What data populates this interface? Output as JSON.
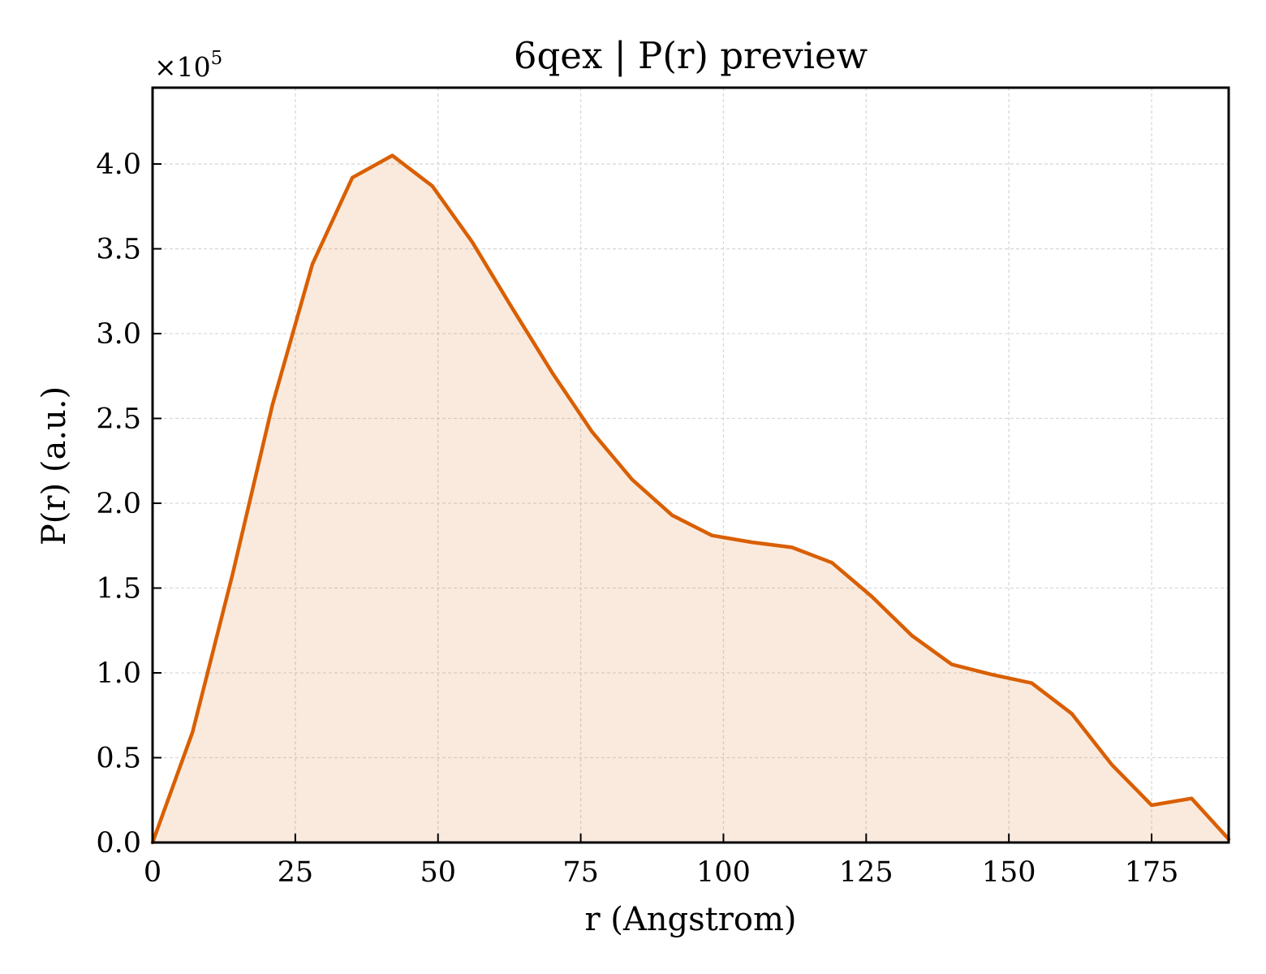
{
  "chart_data": {
    "type": "area",
    "title": "6qex | P(r) preview",
    "xlabel": "r (Angstrom)",
    "ylabel": "P(r) (a.u.)",
    "y_multiplier_prefix": "×10",
    "y_multiplier_exponent": "5",
    "xlim": [
      0,
      188.5
    ],
    "ylim": [
      0,
      4.45
    ],
    "x_ticks": [
      0,
      25,
      50,
      75,
      100,
      125,
      150,
      175
    ],
    "x_tick_labels": [
      "0",
      "25",
      "50",
      "75",
      "100",
      "125",
      "150",
      "175"
    ],
    "y_ticks": [
      0,
      0.5,
      1.0,
      1.5,
      2.0,
      2.5,
      3.0,
      3.5,
      4.0
    ],
    "y_tick_labels": [
      "0.0",
      "0.5",
      "1.0",
      "1.5",
      "2.0",
      "2.5",
      "3.0",
      "3.5",
      "4.0"
    ],
    "grid": true,
    "line_color": "#d95f02",
    "fill_color": "#d95f02",
    "series": [
      {
        "x": [
          0,
          7,
          14,
          21,
          28,
          35,
          42,
          49,
          56,
          63,
          70,
          77,
          84,
          91,
          98,
          105,
          112,
          119,
          126,
          133,
          140,
          147,
          154,
          161,
          168,
          175,
          182,
          188.5
        ],
        "values": [
          0,
          0.65,
          1.58,
          2.58,
          3.41,
          3.92,
          4.05,
          3.87,
          3.54,
          3.15,
          2.77,
          2.42,
          2.14,
          1.93,
          1.81,
          1.77,
          1.74,
          1.65,
          1.45,
          1.22,
          1.05,
          0.99,
          0.94,
          0.76,
          0.46,
          0.22,
          0.26,
          0.02
        ]
      }
    ]
  }
}
